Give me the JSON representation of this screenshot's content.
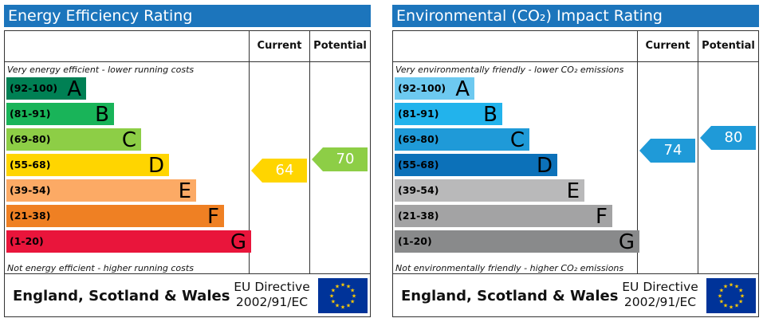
{
  "chart_data": [
    {
      "type": "bar",
      "title": "Energy Efficiency Rating",
      "columns": [
        "Current",
        "Potential"
      ],
      "top_note": "Very energy efficient - lower running costs",
      "bottom_note": "Not energy efficient - higher running costs",
      "bands": [
        {
          "range": "(92-100)",
          "letter": "A",
          "color": "#008054",
          "text_color": "#000000"
        },
        {
          "range": "(81-91)",
          "letter": "B",
          "color": "#19b459",
          "text_color": "#000000"
        },
        {
          "range": "(69-80)",
          "letter": "C",
          "color": "#8dce46",
          "text_color": "#000000"
        },
        {
          "range": "(55-68)",
          "letter": "D",
          "color": "#ffd500",
          "text_color": "#000000"
        },
        {
          "range": "(39-54)",
          "letter": "E",
          "color": "#fcaa65",
          "text_color": "#000000"
        },
        {
          "range": "(21-38)",
          "letter": "F",
          "color": "#ef8023",
          "text_color": "#000000"
        },
        {
          "range": "(1-20)",
          "letter": "G",
          "color": "#e9153b",
          "text_color": "#000000"
        }
      ],
      "current": {
        "value": 64,
        "label": "64",
        "color": "#ffd500"
      },
      "potential": {
        "value": 70,
        "label": "70",
        "color": "#8dce46"
      },
      "footer": {
        "country": "England, Scotland & Wales",
        "directive_line1": "EU Directive",
        "directive_line2": "2002/91/EC"
      }
    },
    {
      "type": "bar",
      "title": "Environmental (CO₂) Impact Rating",
      "columns": [
        "Current",
        "Potential"
      ],
      "top_note": "Very environmentally friendly - lower CO₂ emissions",
      "bottom_note": "Not environmentally friendly - higher CO₂ emissions",
      "bands": [
        {
          "range": "(92-100)",
          "letter": "A",
          "color": "#6dc9f0",
          "text_color": "#000000"
        },
        {
          "range": "(81-91)",
          "letter": "B",
          "color": "#22b3ec",
          "text_color": "#000000"
        },
        {
          "range": "(69-80)",
          "letter": "C",
          "color": "#1f9ad8",
          "text_color": "#000000"
        },
        {
          "range": "(55-68)",
          "letter": "D",
          "color": "#0c71b9",
          "text_color": "#000000"
        },
        {
          "range": "(39-54)",
          "letter": "E",
          "color": "#b9b9ba",
          "text_color": "#000000"
        },
        {
          "range": "(21-38)",
          "letter": "F",
          "color": "#a3a3a4",
          "text_color": "#000000"
        },
        {
          "range": "(1-20)",
          "letter": "G",
          "color": "#898a8b",
          "text_color": "#000000"
        }
      ],
      "current": {
        "value": 74,
        "label": "74",
        "color": "#1f9ad8"
      },
      "potential": {
        "value": 80,
        "label": "80",
        "color": "#1f9ad8"
      },
      "footer": {
        "country": "England, Scotland & Wales",
        "directive_line1": "EU Directive",
        "directive_line2": "2002/91/EC"
      }
    }
  ]
}
